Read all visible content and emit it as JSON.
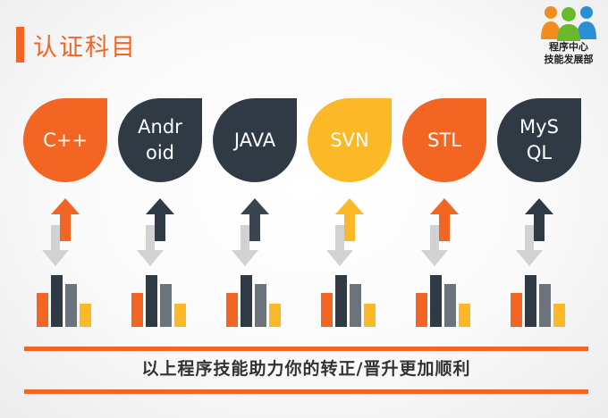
{
  "header": {
    "title": "认证科目"
  },
  "logo": {
    "line1": "程序中心",
    "line2": "技能发展部"
  },
  "subjects": [
    {
      "label": "C++",
      "color": "#f26522"
    },
    {
      "label": "Andr\noid",
      "color": "#2f3a45"
    },
    {
      "label": "JAVA",
      "color": "#2f3a45"
    },
    {
      "label": "SVN",
      "color": "#fbb928"
    },
    {
      "label": "STL",
      "color": "#f26522"
    },
    {
      "label": "MyS\nQL",
      "color": "#2f3a45"
    }
  ],
  "footer": {
    "text": "以上程序技能助力你的转正/晋升更加顺利"
  },
  "colors": {
    "accent": "#f26522",
    "dark": "#2f3a45",
    "yellow": "#fbb928",
    "gray": "#d2d2d2"
  }
}
